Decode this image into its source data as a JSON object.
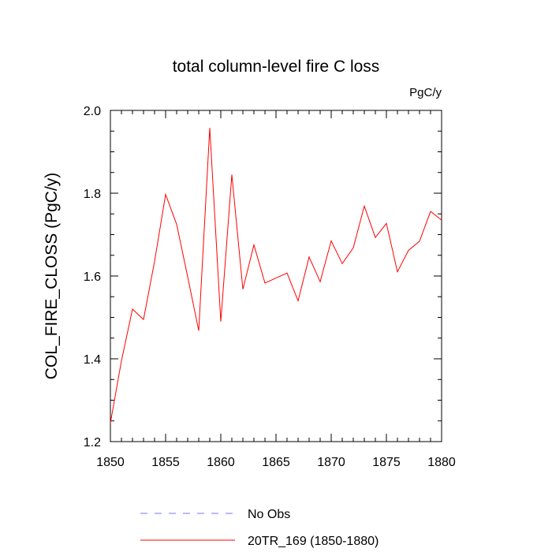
{
  "chart_data": {
    "type": "line",
    "title": "total column-level fire C loss",
    "units_label": "PgC/y",
    "xlabel": "",
    "ylabel": "COL_FIRE_CLOSS  (PgC/y)",
    "xlim": [
      1850,
      1880
    ],
    "ylim": [
      1.2,
      2.0
    ],
    "xticks": [
      1850,
      1855,
      1860,
      1865,
      1870,
      1875,
      1880
    ],
    "xtick_labels": [
      "1850",
      "1855",
      "1860",
      "1865",
      "1870",
      "1875",
      "1880"
    ],
    "yticks": [
      1.2,
      1.4,
      1.6,
      1.8,
      2.0
    ],
    "ytick_labels": [
      "1.2",
      "1.4",
      "1.6",
      "1.8",
      "2.0"
    ],
    "grid": false,
    "series": [
      {
        "name": "20TR_169 (1850-1880)",
        "color": "#ff0000",
        "style": "solid",
        "x": [
          1850,
          1851,
          1852,
          1853,
          1854,
          1855,
          1856,
          1857,
          1858,
          1859,
          1860,
          1861,
          1862,
          1863,
          1864,
          1865,
          1866,
          1867,
          1868,
          1869,
          1870,
          1871,
          1872,
          1873,
          1874,
          1875,
          1876,
          1877,
          1878,
          1879,
          1880
        ],
        "values": [
          1.245,
          1.395,
          1.52,
          1.495,
          1.635,
          1.797,
          1.725,
          1.598,
          1.468,
          1.958,
          1.49,
          1.845,
          1.568,
          1.675,
          1.583,
          1.595,
          1.607,
          1.54,
          1.646,
          1.586,
          1.685,
          1.63,
          1.668,
          1.769,
          1.693,
          1.727,
          1.61,
          1.662,
          1.684,
          1.756,
          1.735
        ]
      }
    ],
    "legend": [
      {
        "label": "No Obs",
        "color": "#7777ff",
        "style": "dashed"
      },
      {
        "label": "20TR_169 (1850-1880)",
        "color": "#ff0000",
        "style": "solid"
      }
    ],
    "legend_position": "bottom"
  }
}
